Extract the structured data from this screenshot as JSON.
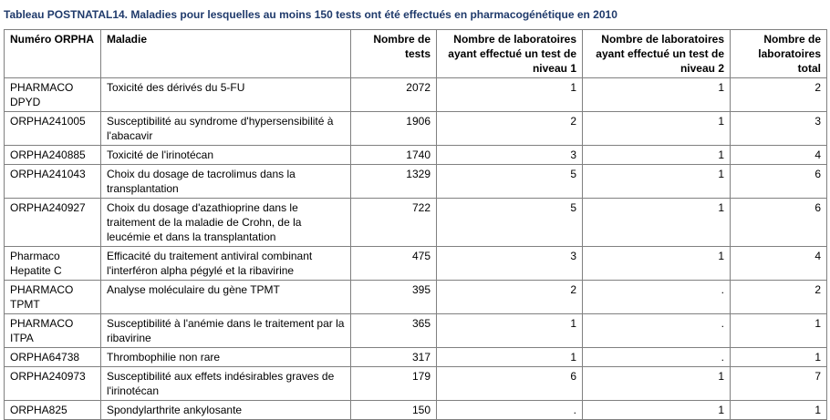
{
  "title": "Tableau POSTNATAL14. Maladies pour lesquelles au moins 150 tests ont été effectués en pharmacogénétique en 2010",
  "columns": [
    "Numéro ORPHA",
    "Maladie",
    "Nombre de tests",
    "Nombre de laboratoires ayant effectué un test de niveau 1",
    "Nombre de laboratoires ayant effectué un test de niveau 2",
    "Nombre de laboratoires total"
  ],
  "rows": [
    {
      "orpha": "PHARMACO DPYD",
      "maladie": "Toxicité des dérivés du 5-FU",
      "tests": "2072",
      "niveau1": "1",
      "niveau2": "1",
      "total": "2"
    },
    {
      "orpha": "ORPHA241005",
      "maladie": "Susceptibilité au syndrome d'hypersensibilité à l'abacavir",
      "tests": "1906",
      "niveau1": "2",
      "niveau2": "1",
      "total": "3"
    },
    {
      "orpha": "ORPHA240885",
      "maladie": "Toxicité de l'irinotécan",
      "tests": "1740",
      "niveau1": "3",
      "niveau2": "1",
      "total": "4"
    },
    {
      "orpha": "ORPHA241043",
      "maladie": "Choix du dosage de tacrolimus dans la transplantation",
      "tests": "1329",
      "niveau1": "5",
      "niveau2": "1",
      "total": "6"
    },
    {
      "orpha": "ORPHA240927",
      "maladie": "Choix du dosage d'azathioprine dans le traitement de la maladie de Crohn, de la leucémie et dans la transplantation",
      "tests": "722",
      "niveau1": "5",
      "niveau2": "1",
      "total": "6"
    },
    {
      "orpha": "Pharmaco Hepatite C",
      "maladie": "Efficacité du traitement antiviral combinant l'interféron alpha pégylé et la ribavirine",
      "tests": "475",
      "niveau1": "3",
      "niveau2": "1",
      "total": "4"
    },
    {
      "orpha": "PHARMACO TPMT",
      "maladie": "Analyse moléculaire du gène TPMT",
      "tests": "395",
      "niveau1": "2",
      "niveau2": ".",
      "total": "2"
    },
    {
      "orpha": "PHARMACO ITPA",
      "maladie": "Susceptibilité à l'anémie dans le traitement par la ribavirine",
      "tests": "365",
      "niveau1": "1",
      "niveau2": ".",
      "total": "1"
    },
    {
      "orpha": "ORPHA64738",
      "maladie": "Thrombophilie non rare",
      "tests": "317",
      "niveau1": "1",
      "niveau2": ".",
      "total": "1"
    },
    {
      "orpha": "ORPHA240973",
      "maladie": "Susceptibilité aux effets indésirables graves de l'irinotécan",
      "tests": "179",
      "niveau1": "6",
      "niveau2": "1",
      "total": "7"
    },
    {
      "orpha": "ORPHA825",
      "maladie": "Spondylarthrite ankylosante",
      "tests": "150",
      "niveau1": ".",
      "niveau2": "1",
      "total": "1"
    }
  ]
}
